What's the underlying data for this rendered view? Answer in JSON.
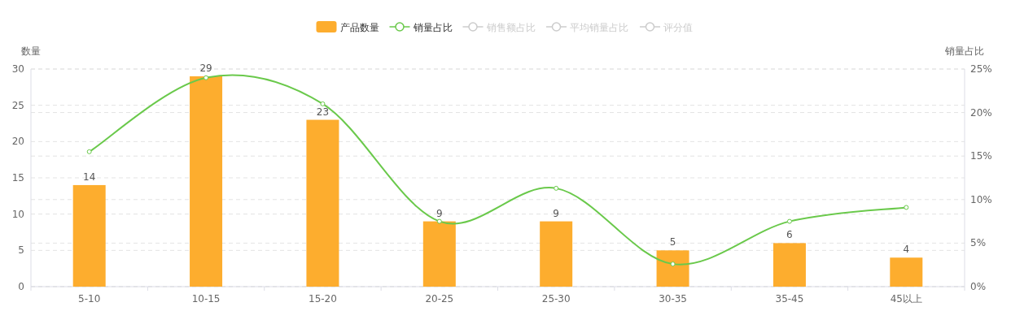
{
  "chart_data": {
    "type": "bar",
    "ylabel": "数量",
    "y2label": "销量占比",
    "categories": [
      "5-10",
      "10-15",
      "15-20",
      "20-25",
      "25-30",
      "30-35",
      "35-45",
      "45以上"
    ],
    "series": [
      {
        "name": "产品数量",
        "color": "#fdad2e",
        "values": [
          14,
          29,
          23,
          9,
          9,
          5,
          6,
          4
        ],
        "value_labels": [
          "14",
          "29",
          "23",
          "9",
          "9",
          "5",
          "6",
          "4"
        ]
      },
      {
        "name": "销量占比",
        "type": "line",
        "axis": "y2",
        "color": "#6ac94b",
        "values": [
          15.5,
          24.0,
          21.0,
          7.5,
          11.3,
          2.6,
          7.5,
          9.1
        ]
      },
      {
        "name": "销售额占比",
        "type": "line",
        "axis": "y2",
        "color": "#cccccc",
        "values": [
          null,
          null,
          null,
          null,
          null,
          null,
          null,
          null
        ]
      },
      {
        "name": "平均销量占比",
        "type": "line",
        "axis": "y2",
        "color": "#cccccc",
        "values": [
          null,
          null,
          null,
          null,
          null,
          null,
          null,
          null
        ]
      },
      {
        "name": "评分值",
        "type": "line",
        "axis": "y2",
        "color": "#cccccc",
        "values": [
          null,
          null,
          null,
          null,
          null,
          null,
          null,
          null
        ]
      }
    ],
    "ylim": [
      0,
      30
    ],
    "yticks": [
      0,
      5,
      10,
      15,
      20,
      25,
      30
    ],
    "y2lim": [
      0,
      25
    ],
    "y2ticks": [
      {
        "value": 0,
        "label": "0%"
      },
      {
        "value": 5,
        "label": "5%"
      },
      {
        "value": 10,
        "label": "10%"
      },
      {
        "value": 15,
        "label": "15%"
      },
      {
        "value": 20,
        "label": "20%"
      },
      {
        "value": 25,
        "label": "25%"
      }
    ],
    "grid": true,
    "legend": "top",
    "marker": "circle",
    "line_style": "solid"
  }
}
